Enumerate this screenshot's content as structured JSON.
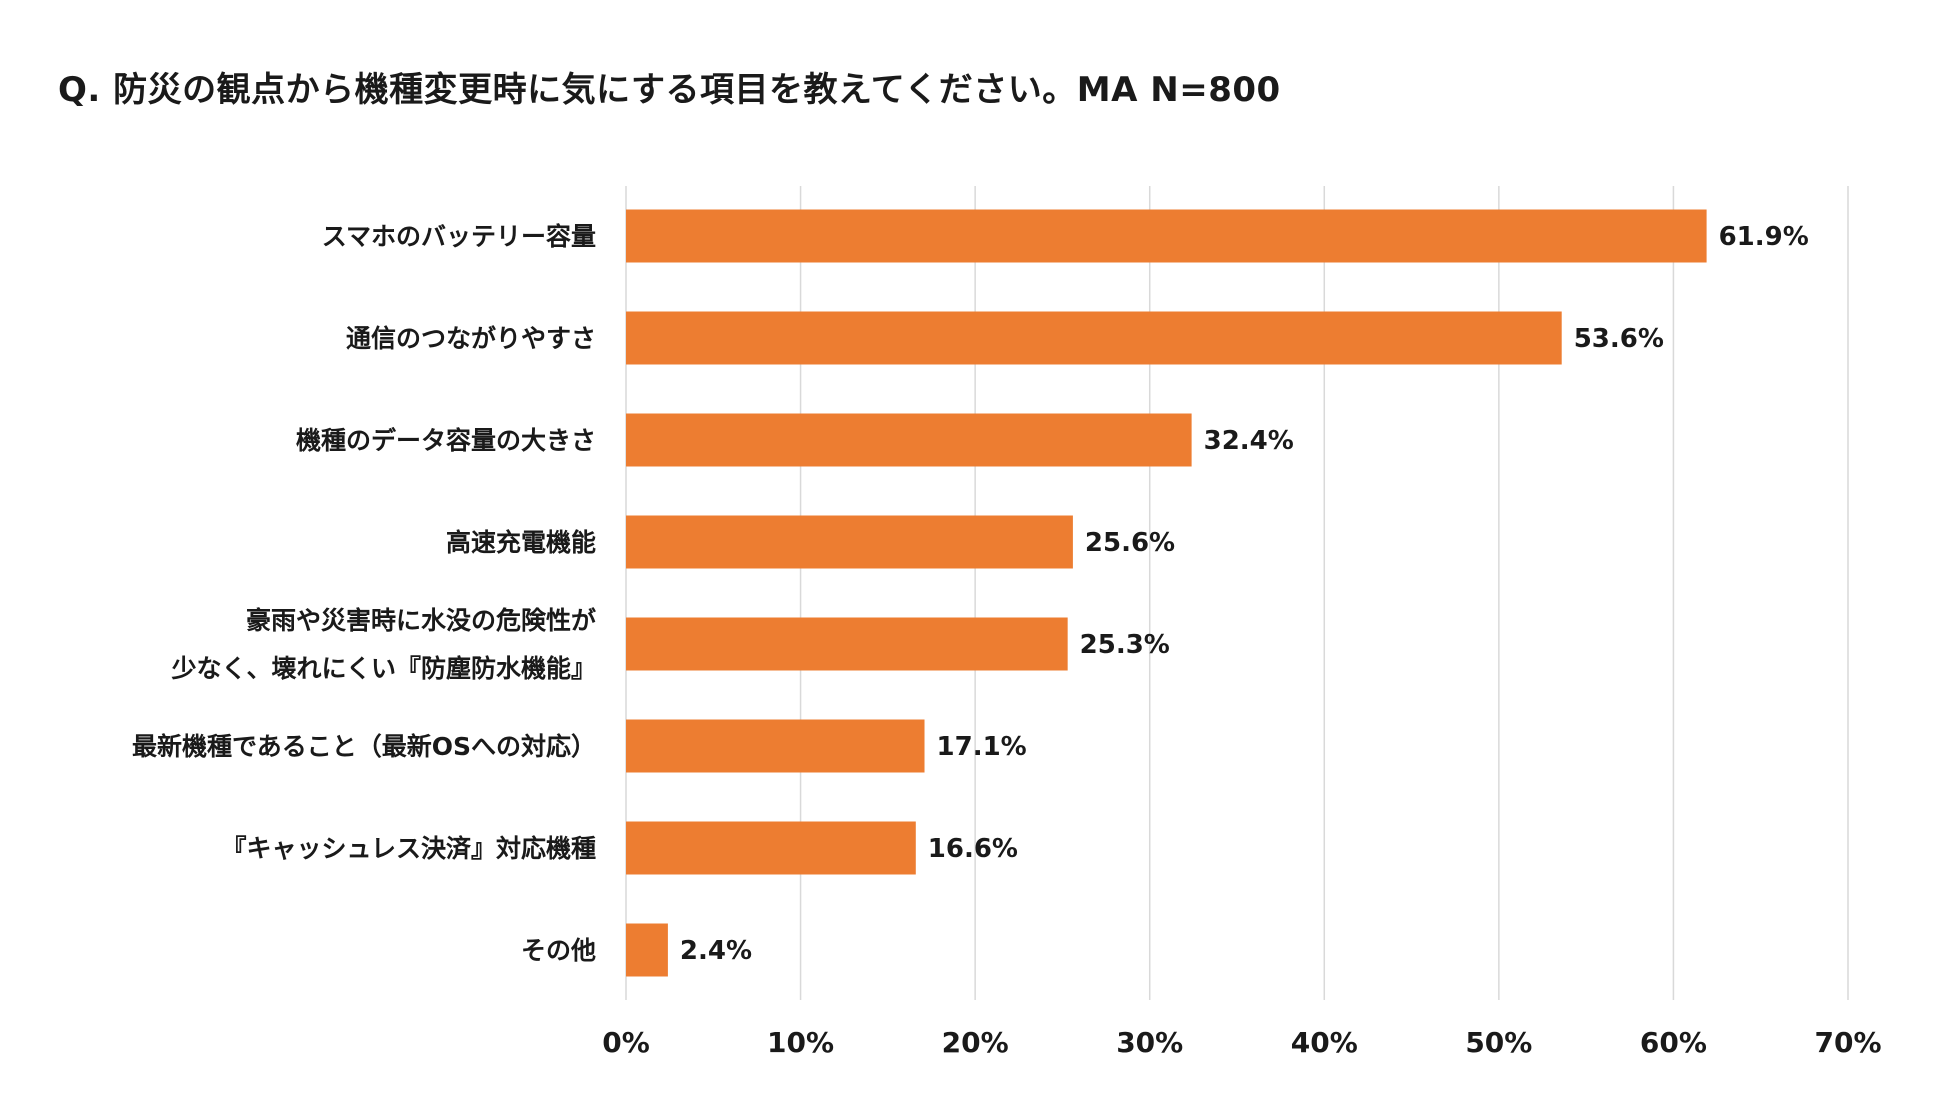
{
  "chart_title": "Q. 防災の観点から機種変更時に気にする項目を教えてください。MA N=800",
  "colors": {
    "bar": "#ED7D31",
    "grid": "#D9D9D9",
    "text": "#1A1A1A"
  },
  "chart_data": {
    "type": "bar",
    "orientation": "horizontal",
    "title": "Q. 防災の観点から機種変更時に気にする項目を教えてください。MA N=800",
    "xlabel": "",
    "ylabel": "",
    "xlim": [
      0,
      70
    ],
    "x_ticks": [
      "0%",
      "10%",
      "20%",
      "30%",
      "40%",
      "50%",
      "60%",
      "70%"
    ],
    "grid": "vertical",
    "legend": "none",
    "categories": [
      [
        "スマホのバッテリー容量"
      ],
      [
        "通信のつながりやすさ"
      ],
      [
        "機種のデータ容量の大きさ"
      ],
      [
        "高速充電機能"
      ],
      [
        "豪雨や災害時に水没の危険性が",
        "少なく、壊れにくい『防塵防水機能』"
      ],
      [
        "最新機種であること（最新OSへの対応）"
      ],
      [
        "『キャッシュレス決済』対応機種"
      ],
      [
        "その他"
      ]
    ],
    "values": [
      61.9,
      53.6,
      32.4,
      25.6,
      25.3,
      17.1,
      16.6,
      2.4
    ],
    "value_labels": [
      "61.9%",
      "53.6%",
      "32.4%",
      "25.6%",
      "25.3%",
      "17.1%",
      "16.6%",
      "2.4%"
    ]
  }
}
